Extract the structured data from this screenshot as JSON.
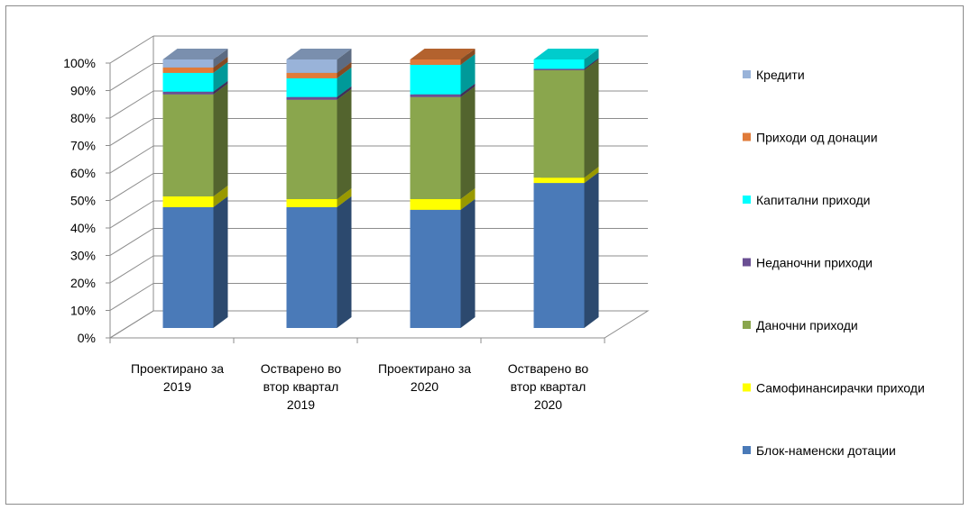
{
  "chart_data": {
    "type": "bar",
    "stacked": "percent",
    "three_d": true,
    "grid": true,
    "legend_position": "right",
    "ylim": [
      0,
      100
    ],
    "y_ticks": [
      "0%",
      "10%",
      "20%",
      "30%",
      "40%",
      "50%",
      "60%",
      "70%",
      "80%",
      "90%",
      "100%"
    ],
    "categories": [
      [
        "Проектирано за",
        "2019"
      ],
      [
        "Остварено во",
        "втор квартал",
        "2019"
      ],
      [
        "Проектирано за",
        "2020"
      ],
      [
        "Остварено во",
        "втор квартал",
        "2020"
      ]
    ],
    "series": [
      {
        "name": "Блок-наменски дотации",
        "color": "#4a7ab8",
        "values": [
          45,
          45,
          44,
          54
        ]
      },
      {
        "name": "Самофинансирачки приходи",
        "color": "#ffff00",
        "values": [
          4,
          3,
          4,
          2
        ]
      },
      {
        "name": "Даночни приходи",
        "color": "#8aa64d",
        "values": [
          38,
          37,
          38,
          40
        ]
      },
      {
        "name": "Неданочни приходи",
        "color": "#6a4f93",
        "values": [
          1,
          1,
          1,
          0.5
        ]
      },
      {
        "name": "Капитални приходи",
        "color": "#00ffff",
        "values": [
          7,
          7,
          11,
          3.5
        ]
      },
      {
        "name": "Приходи од донации",
        "color": "#e07b39",
        "values": [
          2,
          2,
          2,
          0
        ]
      },
      {
        "name": "Кредити",
        "color": "#99b3d9",
        "values": [
          3,
          5,
          0,
          0
        ]
      }
    ]
  }
}
